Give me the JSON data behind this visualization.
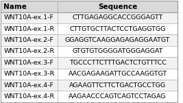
{
  "headers": [
    "Name",
    "Sequence"
  ],
  "rows": [
    [
      "WNT10A-ex.1-F",
      "CTTGAGAGGCACCGGGAGTT"
    ],
    [
      "WNT10A-ex.1-R",
      "CTTGTGCTTACTCCTGAGGTGG"
    ],
    [
      "WNT10A-ex.2-F",
      "GGAGGTCAAGGAGAGAGGAATGT"
    ],
    [
      "WNT10A-ex.2-R",
      "GTGTGTGGGGATGGGAGGAT"
    ],
    [
      "WNT10A-ex.3-F",
      "TGCCCTTCTTTGACTCTGTTTCC"
    ],
    [
      "WNT10A-ex.3-R",
      "AACGAGAAGATTGCCAAGGTGT"
    ],
    [
      "WNT10A-ex.4-F",
      "AGAAGTTCTTCTGACTGCCTGG"
    ],
    [
      "WNT10A-ex.4-R",
      "AAGAACCCAGTCAGTCCTAGAG"
    ]
  ],
  "header_bg": "#d9d9d9",
  "row_bg_even": "#f2f2f2",
  "row_bg_odd": "#ffffff",
  "border_color": "#999999",
  "text_color": "#000000",
  "header_fontsize": 7.5,
  "row_fontsize": 6.8,
  "fig_width": 2.67,
  "fig_height": 1.5,
  "dpi": 100
}
